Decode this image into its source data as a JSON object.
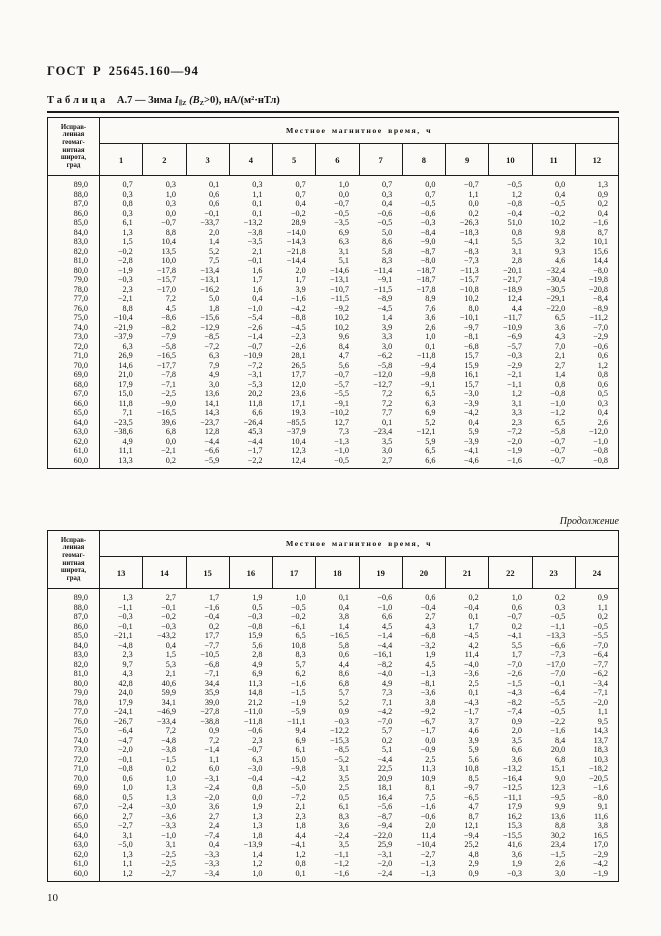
{
  "page": {
    "header": "ГОСТ Р 25645.160—94",
    "page_number": "10",
    "continuation_label": "Продолжение"
  },
  "title": {
    "label": "Таблица",
    "number": "А.7",
    "dash": "—",
    "season": "Зима",
    "symbol": "I",
    "symbol_sub": "∥Z",
    "cond_open": "(B",
    "cond_sub": "Z",
    "cond_close": ">0),",
    "units": "нА/(м²·нТл)"
  },
  "table_header": {
    "corner_label": "Исправ-\nленная\nгеомаг-\nнитная\nширота,\nград",
    "time_label": "Местное магнитное время, ч"
  },
  "tables": [
    {
      "hours": [
        "1",
        "2",
        "3",
        "4",
        "5",
        "6",
        "7",
        "8",
        "9",
        "10",
        "11",
        "12"
      ],
      "rows": [
        [
          "89,0",
          "0,7",
          "0,3",
          "0,1",
          "0,3",
          "0,7",
          "1,0",
          "0,7",
          "0,0",
          "−0,7",
          "−0,5",
          "0,0",
          "1,3"
        ],
        [
          "88,0",
          "0,3",
          "1,0",
          "0,6",
          "1,1",
          "0,7",
          "0,0",
          "0,3",
          "0,7",
          "1,1",
          "1,2",
          "0,4",
          "0,9"
        ],
        [
          "87,0",
          "0,8",
          "0,3",
          "0,6",
          "0,1",
          "0,4",
          "−0,7",
          "0,4",
          "−0,5",
          "0,0",
          "−0,8",
          "−0,5",
          "0,2"
        ],
        [
          "86,0",
          "0,3",
          "0,0",
          "−0,1",
          "0,1",
          "−0,2",
          "−0,5",
          "−0,6",
          "−0,6",
          "0,2",
          "−0,4",
          "−0,2",
          "0,4"
        ],
        [
          "85,0",
          "6,1",
          "−0,7",
          "−33,7",
          "−13,2",
          "28,9",
          "−3,5",
          "−0,5",
          "−0,3",
          "−26,3",
          "51,0",
          "10,2",
          "−1,6"
        ],
        [
          "84,0",
          "1,3",
          "8,8",
          "2,0",
          "−3,8",
          "−14,0",
          "6,9",
          "5,0",
          "−8,4",
          "−18,3",
          "0,8",
          "9,8",
          "8,7"
        ],
        [
          "83,0",
          "1,5",
          "10,4",
          "1,4",
          "−3,5",
          "−14,3",
          "6,3",
          "8,6",
          "−9,0",
          "−4,1",
          "5,5",
          "3,2",
          "10,1"
        ],
        [
          "82,0",
          "−0,2",
          "13,5",
          "5,2",
          "2,1",
          "−21,8",
          "3,1",
          "5,8",
          "−8,7",
          "−8,3",
          "3,1",
          "9,3",
          "15,6"
        ],
        [
          "81,0",
          "−2,8",
          "10,0",
          "7,5",
          "−0,1",
          "−14,4",
          "5,1",
          "8,3",
          "−8,0",
          "−7,3",
          "2,8",
          "4,6",
          "14,4"
        ],
        [
          "80,0",
          "−1,9",
          "−17,8",
          "−13,4",
          "1,6",
          "2,0",
          "−14,6",
          "−11,4",
          "−18,7",
          "−11,3",
          "−20,1",
          "−32,4",
          "−8,0"
        ],
        [
          "79,0",
          "−0,3",
          "−15,7",
          "−13,1",
          "1,7",
          "1,7",
          "−13,1",
          "−9,1",
          "−18,7",
          "−15,7",
          "−21,7",
          "−30,4",
          "−19,8"
        ],
        [
          "78,0",
          "2,3",
          "−17,0",
          "−16,2",
          "1,6",
          "3,9",
          "−10,7",
          "−11,5",
          "−17,8",
          "−10,8",
          "−18,9",
          "−30,5",
          "−20,8"
        ],
        [
          "77,0",
          "−2,1",
          "7,2",
          "5,0",
          "0,4",
          "−1,6",
          "−11,5",
          "−8,9",
          "8,9",
          "10,2",
          "12,4",
          "−29,1",
          "−8,4"
        ],
        [
          "76,0",
          "8,8",
          "4,5",
          "1,8",
          "−1,0",
          "−4,2",
          "−9,2",
          "−4,5",
          "7,6",
          "8,0",
          "4,4",
          "−22,0",
          "−8,9"
        ],
        [
          "75,0",
          "−10,4",
          "−8,6",
          "−15,6",
          "−5,4",
          "−8,8",
          "10,2",
          "1,4",
          "3,6",
          "−10,1",
          "−11,7",
          "6,5",
          "−11,2"
        ],
        [
          "74,0",
          "−21,9",
          "−8,2",
          "−12,9",
          "−2,6",
          "−4,5",
          "10,2",
          "3,9",
          "2,6",
          "−9,7",
          "−10,9",
          "3,6",
          "−7,0"
        ],
        [
          "73,0",
          "−37,9",
          "−7,9",
          "−8,5",
          "−1,4",
          "−2,3",
          "9,6",
          "3,3",
          "1,0",
          "−8,1",
          "−6,9",
          "4,3",
          "−2,9"
        ],
        [
          "72,0",
          "6,3",
          "−5,8",
          "−7,2",
          "−0,7",
          "−2,6",
          "8,4",
          "3,0",
          "0,1",
          "−6,8",
          "−5,7",
          "7,0",
          "−0,6"
        ],
        [
          "71,0",
          "26,9",
          "−16,5",
          "6,3",
          "−10,9",
          "28,1",
          "4,7",
          "−6,2",
          "−11,8",
          "15,7",
          "−0,3",
          "2,1",
          "0,6"
        ],
        [
          "70,0",
          "14,6",
          "−17,7",
          "7,9",
          "−7,2",
          "26,5",
          "5,6",
          "−5,8",
          "−9,4",
          "15,9",
          "−2,9",
          "2,7",
          "1,2"
        ],
        [
          "69,0",
          "21,0",
          "−7,8",
          "4,9",
          "−3,1",
          "17,7",
          "−0,7",
          "−12,0",
          "−9,8",
          "16,1",
          "−2,1",
          "1,4",
          "0,8"
        ],
        [
          "68,0",
          "17,9",
          "−7,1",
          "3,0",
          "−5,3",
          "12,0",
          "−5,7",
          "−12,7",
          "−9,1",
          "15,7",
          "−1,1",
          "0,8",
          "0,6"
        ],
        [
          "67,0",
          "15,0",
          "−2,5",
          "13,6",
          "20,2",
          "23,6",
          "−5,5",
          "7,2",
          "6,5",
          "−3,0",
          "1,2",
          "−0,8",
          "0,5"
        ],
        [
          "66,0",
          "11,8",
          "−9,0",
          "14,1",
          "11,8",
          "17,1",
          "−9,1",
          "7,2",
          "6,3",
          "−3,9",
          "3,1",
          "−1,0",
          "0,3"
        ],
        [
          "65,0",
          "7,1",
          "−16,5",
          "14,3",
          "6,6",
          "19,3",
          "−10,2",
          "7,7",
          "6,9",
          "−4,2",
          "3,3",
          "−1,2",
          "0,4"
        ],
        [
          "64,0",
          "−23,5",
          "39,6",
          "−23,7",
          "−26,4",
          "−85,5",
          "12,7",
          "0,1",
          "5,2",
          "0,4",
          "2,3",
          "6,5",
          "2,6"
        ],
        [
          "63,0",
          "−38,6",
          "6,8",
          "12,8",
          "45,3",
          "−37,9",
          "7,3",
          "−23,4",
          "−12,1",
          "5,9",
          "−7,2",
          "−5,8",
          "−12,0"
        ],
        [
          "62,0",
          "4,9",
          "0,0",
          "−4,4",
          "−4,4",
          "10,4",
          "−1,3",
          "3,5",
          "5,9",
          "−3,9",
          "−2,0",
          "−0,7",
          "−1,0"
        ],
        [
          "61,0",
          "11,1",
          "−2,1",
          "−6,6",
          "−1,7",
          "12,3",
          "−1,0",
          "3,0",
          "6,5",
          "−4,1",
          "−1,9",
          "−0,7",
          "−0,8"
        ],
        [
          "60,0",
          "13,3",
          "0,2",
          "−5,9",
          "−2,2",
          "12,4",
          "−0,5",
          "2,7",
          "6,6",
          "−4,6",
          "−1,6",
          "−0,7",
          "−0,8"
        ]
      ]
    },
    {
      "hours": [
        "13",
        "14",
        "15",
        "16",
        "17",
        "18",
        "19",
        "20",
        "21",
        "22",
        "23",
        "24"
      ],
      "rows": [
        [
          "89,0",
          "1,3",
          "2,7",
          "1,7",
          "1,9",
          "1,0",
          "0,1",
          "−0,6",
          "0,6",
          "0,2",
          "1,0",
          "0,2",
          "0,9"
        ],
        [
          "88,0",
          "−1,1",
          "−0,1",
          "−1,6",
          "0,5",
          "−0,5",
          "0,4",
          "−1,0",
          "−0,4",
          "−0,4",
          "0,6",
          "0,3",
          "1,1"
        ],
        [
          "87,0",
          "−0,3",
          "−0,2",
          "−0,4",
          "−0,3",
          "−0,2",
          "3,8",
          "6,6",
          "2,7",
          "0,1",
          "−0,7",
          "−0,5",
          "0,2"
        ],
        [
          "86,0",
          "−0,1",
          "−0,3",
          "0,2",
          "−0,8",
          "−6,1",
          "1,4",
          "4,5",
          "4,3",
          "1,7",
          "0,2",
          "−1,1",
          "−0,5"
        ],
        [
          "85,0",
          "−21,1",
          "−43,2",
          "17,7",
          "15,9",
          "6,5",
          "−16,5",
          "−1,4",
          "−6,8",
          "−4,5",
          "−4,1",
          "−13,3",
          "−5,5"
        ],
        [
          "84,0",
          "−4,8",
          "0,4",
          "−7,7",
          "5,6",
          "10,8",
          "5,8",
          "−4,4",
          "−3,2",
          "4,2",
          "5,5",
          "−6,6",
          "−7,0"
        ],
        [
          "83,0",
          "2,3",
          "1,5",
          "−10,5",
          "2,8",
          "8,3",
          "0,6",
          "−16,1",
          "1,9",
          "11,4",
          "1,7",
          "−7,3",
          "−6,4"
        ],
        [
          "82,0",
          "9,7",
          "5,3",
          "−6,8",
          "4,9",
          "5,7",
          "4,4",
          "−8,2",
          "4,5",
          "−4,0",
          "−7,0",
          "−17,0",
          "−7,7"
        ],
        [
          "81,0",
          "4,3",
          "2,1",
          "−7,1",
          "6,9",
          "6,2",
          "8,6",
          "−4,0",
          "−1,3",
          "−3,6",
          "−2,6",
          "−7,0",
          "−6,2"
        ],
        [
          "80,0",
          "42,8",
          "40,6",
          "34,4",
          "11,3",
          "−1,6",
          "6,8",
          "4,9",
          "−8,1",
          "2,5",
          "−1,5",
          "−0,1",
          "−3,4"
        ],
        [
          "79,0",
          "24,0",
          "59,9",
          "35,9",
          "14,8",
          "−1,5",
          "5,7",
          "7,3",
          "−3,6",
          "0,1",
          "−4,3",
          "−6,4",
          "−7,1"
        ],
        [
          "78,0",
          "17,9",
          "34,1",
          "39,0",
          "21,2",
          "−1,9",
          "5,2",
          "7,1",
          "3,8",
          "−4,3",
          "−8,2",
          "−5,5",
          "−2,0"
        ],
        [
          "77,0",
          "−24,1",
          "−46,9",
          "−27,8",
          "−11,0",
          "−5,9",
          "0,9",
          "−4,2",
          "−9,2",
          "−1,7",
          "−7,4",
          "−0,5",
          "1,1"
        ],
        [
          "76,0",
          "−26,7",
          "−33,4",
          "−38,8",
          "−11,8",
          "−11,1",
          "−0,3",
          "−7,0",
          "−6,7",
          "3,7",
          "0,9",
          "−2,2",
          "9,5"
        ],
        [
          "75,0",
          "−6,4",
          "7,2",
          "0,9",
          "−0,6",
          "9,4",
          "−12,2",
          "5,7",
          "−1,7",
          "4,6",
          "2,0",
          "−1,6",
          "14,3"
        ],
        [
          "74,0",
          "−4,7",
          "−4,8",
          "7,2",
          "2,3",
          "6,9",
          "−15,3",
          "0,2",
          "0,0",
          "3,9",
          "3,5",
          "8,4",
          "13,7"
        ],
        [
          "73,0",
          "−2,0",
          "−3,8",
          "−1,4",
          "−0,7",
          "6,1",
          "−8,5",
          "5,1",
          "−0,9",
          "5,9",
          "6,6",
          "20,0",
          "18,3"
        ],
        [
          "72,0",
          "−0,1",
          "−1,5",
          "1,1",
          "6,3",
          "15,0",
          "−5,2",
          "−4,4",
          "2,5",
          "5,6",
          "3,6",
          "6,8",
          "10,3"
        ],
        [
          "71,0",
          "−0,8",
          "0,2",
          "6,0",
          "−3,0",
          "−9,8",
          "3,1",
          "22,5",
          "11,3",
          "10,8",
          "−13,2",
          "15,1",
          "−18,2"
        ],
        [
          "70,0",
          "0,6",
          "1,0",
          "−3,1",
          "−0,4",
          "−4,2",
          "3,5",
          "20,9",
          "10,9",
          "8,5",
          "−16,4",
          "9,0",
          "−20,5"
        ],
        [
          "69,0",
          "1,0",
          "1,3",
          "−2,4",
          "0,8",
          "−5,0",
          "2,5",
          "18,1",
          "8,1",
          "−9,7",
          "−12,5",
          "12,3",
          "−1,6"
        ],
        [
          "68,0",
          "0,5",
          "1,3",
          "−2,0",
          "0,0",
          "−7,2",
          "0,5",
          "16,4",
          "7,5",
          "−6,5",
          "−11,1",
          "−9,5",
          "−8,0"
        ],
        [
          "67,0",
          "−2,4",
          "−3,0",
          "3,6",
          "1,9",
          "2,1",
          "6,1",
          "−5,6",
          "−1,6",
          "4,7",
          "17,9",
          "9,9",
          "9,1"
        ],
        [
          "66,0",
          "2,7",
          "−3,6",
          "2,7",
          "1,3",
          "2,3",
          "8,3",
          "−8,7",
          "−0,6",
          "8,7",
          "16,2",
          "13,6",
          "11,6"
        ],
        [
          "65,0",
          "−2,7",
          "−3,3",
          "2,4",
          "1,3",
          "1,8",
          "3,6",
          "−9,4",
          "2,0",
          "12,1",
          "15,3",
          "8,8",
          "3,8"
        ],
        [
          "64,0",
          "3,1",
          "−1,0",
          "−7,4",
          "1,8",
          "4,4",
          "−2,4",
          "−22,0",
          "11,4",
          "−9,4",
          "−15,5",
          "30,2",
          "16,5"
        ],
        [
          "63,0",
          "−5,0",
          "3,1",
          "0,4",
          "−13,9",
          "−4,1",
          "3,5",
          "25,9",
          "−10,4",
          "25,2",
          "41,6",
          "23,4",
          "17,0"
        ],
        [
          "62,0",
          "1,3",
          "−2,5",
          "−3,3",
          "1,4",
          "1,2",
          "−1,1",
          "−3,1",
          "−2,7",
          "4,8",
          "3,6",
          "−1,5",
          "−2,9"
        ],
        [
          "61,0",
          "1,1",
          "−2,5",
          "−3,3",
          "1,2",
          "0,8",
          "−1,2",
          "−2,0",
          "−1,3",
          "2,9",
          "1,9",
          "2,6",
          "−4,2"
        ],
        [
          "60,0",
          "1,2",
          "−2,7",
          "−3,4",
          "1,0",
          "0,1",
          "−1,6",
          "−2,4",
          "−1,3",
          "0,9",
          "−0,3",
          "3,0",
          "−1,9"
        ]
      ]
    }
  ]
}
